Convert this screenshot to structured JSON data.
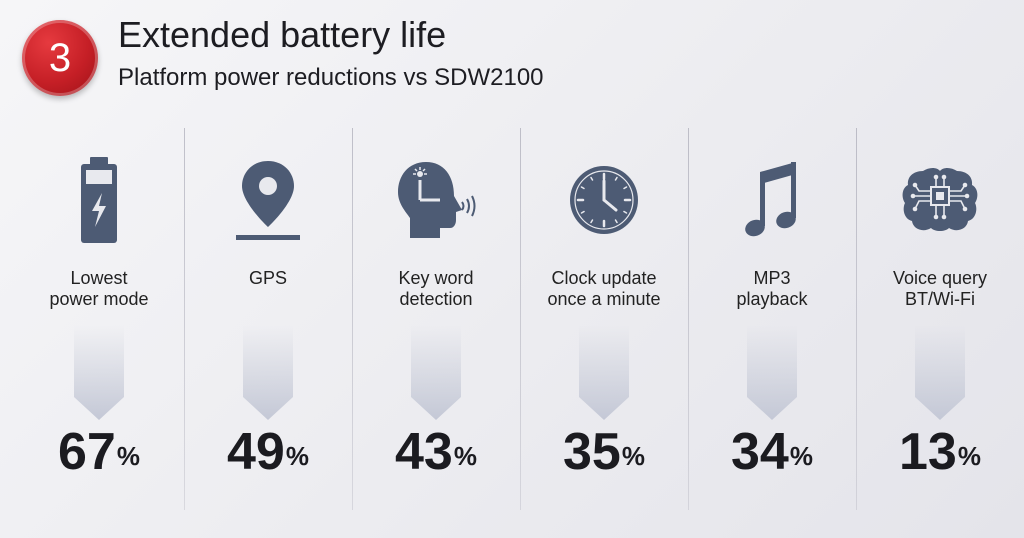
{
  "header": {
    "badge": "3",
    "title": "Extended battery life",
    "subtitle": "Platform power reductions vs SDW2100"
  },
  "colors": {
    "icon": "#4d5b74",
    "badge": "#c51f26",
    "arrow": "#c8ccd8"
  },
  "items": [
    {
      "icon": "battery-icon",
      "line1": "Lowest",
      "line2": "power mode",
      "value": "67",
      "unit": "%"
    },
    {
      "icon": "gps-pin-icon",
      "line1": "GPS",
      "line2": "",
      "value": "49",
      "unit": "%"
    },
    {
      "icon": "voice-head-icon",
      "line1": "Key word",
      "line2": "detection",
      "value": "43",
      "unit": "%"
    },
    {
      "icon": "clock-icon",
      "line1": "Clock update",
      "line2": "once a minute",
      "value": "35",
      "unit": "%"
    },
    {
      "icon": "music-note-icon",
      "line1": "MP3",
      "line2": "playback",
      "value": "34",
      "unit": "%"
    },
    {
      "icon": "brain-chip-icon",
      "line1": "Voice query",
      "line2": "BT/Wi-Fi",
      "value": "13",
      "unit": "%"
    }
  ]
}
